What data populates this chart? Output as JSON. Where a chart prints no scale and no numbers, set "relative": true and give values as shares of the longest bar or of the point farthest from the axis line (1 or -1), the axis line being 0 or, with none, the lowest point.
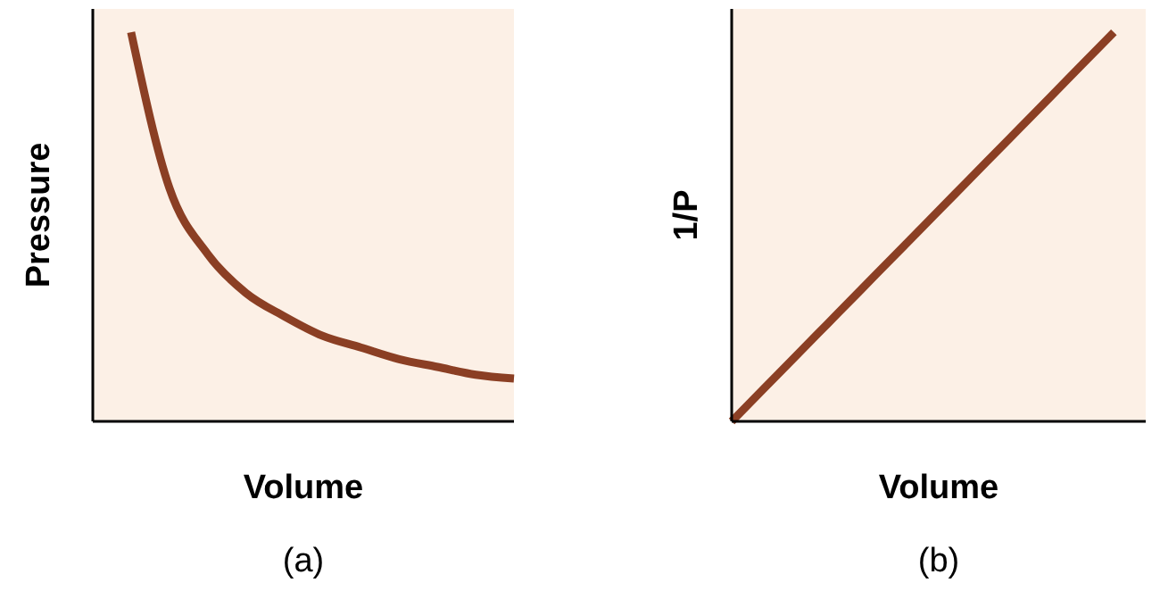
{
  "chart_data": [
    {
      "type": "line",
      "relative": true,
      "xlabel": "Volume",
      "ylabel": "Pressure",
      "annotations": [
        "(a)"
      ],
      "categories": [
        null,
        null,
        null,
        null,
        null,
        null,
        null,
        null,
        null,
        null,
        null,
        null
      ],
      "series": [
        {
          "color": "#8b3f24",
          "values": [
            null,
            1.0,
            0.6,
            0.43,
            0.33,
            0.27,
            0.22,
            0.19,
            0.16,
            0.14,
            0.12,
            0.11
          ]
        }
      ]
    },
    {
      "type": "line",
      "relative": true,
      "xlabel": "Volume",
      "ylabel": "1/P",
      "annotations": [
        "(b)"
      ],
      "categories": [
        null,
        null,
        null,
        null,
        null,
        null,
        null,
        null,
        null,
        null,
        null,
        null,
        null,
        null
      ],
      "series": [
        {
          "color": "#8b3f24",
          "values": [
            0,
            0.0833,
            0.1667,
            0.25,
            0.3333,
            0.4167,
            0.5,
            0.5833,
            0.6667,
            0.75,
            0.8333,
            0.9167,
            1.0,
            null
          ]
        }
      ]
    }
  ]
}
